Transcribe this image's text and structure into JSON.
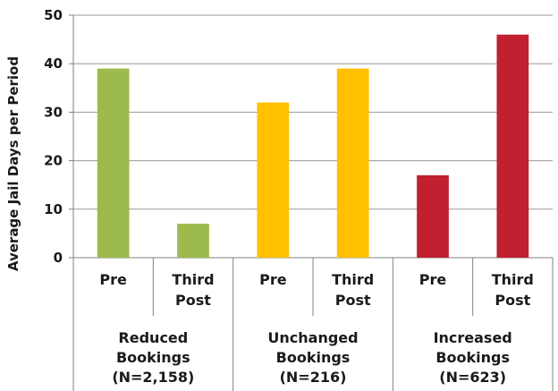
{
  "chart_data": {
    "type": "bar",
    "ylabel": "Average Jail Days per Period",
    "ylim": [
      0,
      50
    ],
    "yticks": [
      0,
      10,
      20,
      30,
      40,
      50
    ],
    "grid": true,
    "groups": [
      {
        "label_lines": [
          "Reduced",
          "Bookings",
          "(N=2,158)"
        ],
        "color": "#9dbb4d",
        "bars": [
          {
            "label_lines": [
              "Pre"
            ],
            "value": 39
          },
          {
            "label_lines": [
              "Third",
              "Post"
            ],
            "value": 7
          }
        ]
      },
      {
        "label_lines": [
          "Unchanged",
          "Bookings",
          "(N=216)"
        ],
        "color": "#ffc000",
        "bars": [
          {
            "label_lines": [
              "Pre"
            ],
            "value": 32
          },
          {
            "label_lines": [
              "Third",
              "Post"
            ],
            "value": 39
          }
        ]
      },
      {
        "label_lines": [
          "Increased",
          "Bookings",
          "(N=623)"
        ],
        "color": "#c0202f",
        "bars": [
          {
            "label_lines": [
              "Pre"
            ],
            "value": 17
          },
          {
            "label_lines": [
              "Third",
              "Post"
            ],
            "value": 46
          }
        ]
      }
    ]
  }
}
